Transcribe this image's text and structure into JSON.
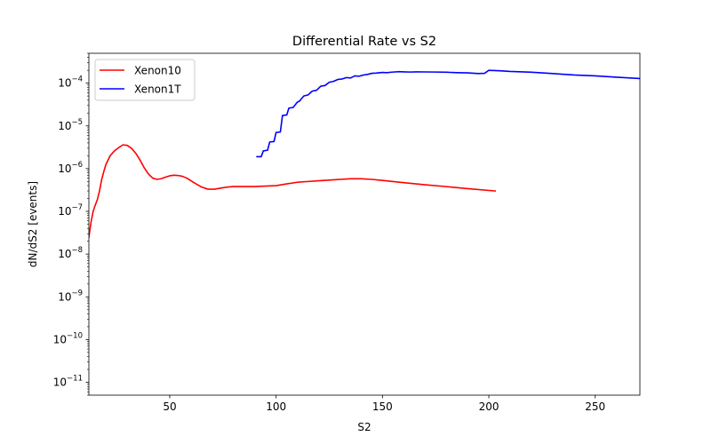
{
  "chart_data": {
    "type": "line",
    "title": "Differential Rate vs S2",
    "xlabel": "S2",
    "ylabel": "dN/dS2 [events]",
    "xlim": [
      12,
      271
    ],
    "ylim": [
      5e-12,
      0.0005
    ],
    "yscale": "log",
    "x_ticks": [
      50,
      100,
      150,
      200,
      250
    ],
    "y_ticks": [
      {
        "value": 1e-11,
        "base": "10",
        "exp": "−11"
      },
      {
        "value": 1e-10,
        "base": "10",
        "exp": "−10"
      },
      {
        "value": 1e-09,
        "base": "10",
        "exp": "−9"
      },
      {
        "value": 1e-08,
        "base": "10",
        "exp": "−8"
      },
      {
        "value": 1e-07,
        "base": "10",
        "exp": "−7"
      },
      {
        "value": 1e-06,
        "base": "10",
        "exp": "−6"
      },
      {
        "value": 1e-05,
        "base": "10",
        "exp": "−5"
      },
      {
        "value": 0.0001,
        "base": "10",
        "exp": "−4"
      }
    ],
    "grid": false,
    "legend_position": "upper-left",
    "series": [
      {
        "name": "Xenon10",
        "color": "#ff0000",
        "x": [
          12,
          13,
          14,
          15,
          16,
          17,
          18,
          19,
          20,
          22,
          24,
          26,
          28,
          30,
          32,
          34,
          36,
          38,
          40,
          42,
          44,
          46,
          48,
          50,
          52,
          54,
          56,
          58,
          60,
          62,
          65,
          68,
          71,
          74,
          77,
          80,
          85,
          90,
          95,
          100,
          105,
          110,
          115,
          120,
          125,
          130,
          135,
          140,
          145,
          150,
          160,
          170,
          180,
          190,
          203
        ],
        "y": [
          2.5e-08,
          5.5e-08,
          1e-07,
          1.4e-07,
          1.9e-07,
          3e-07,
          5.5e-07,
          8.5e-07,
          1.25e-06,
          2e-06,
          2.6e-06,
          3.1e-06,
          3.6e-06,
          3.5e-06,
          3e-06,
          2.3e-06,
          1.6e-06,
          1.05e-06,
          7.5e-07,
          6e-07,
          5.6e-07,
          5.8e-07,
          6.3e-07,
          6.8e-07,
          7e-07,
          6.9e-07,
          6.6e-07,
          6e-07,
          5.2e-07,
          4.5e-07,
          3.7e-07,
          3.3e-07,
          3.3e-07,
          3.5e-07,
          3.7e-07,
          3.8e-07,
          3.8e-07,
          3.8e-07,
          3.9e-07,
          4e-07,
          4.4e-07,
          4.8e-07,
          5e-07,
          5.2e-07,
          5.4e-07,
          5.6e-07,
          5.8e-07,
          5.8e-07,
          5.6e-07,
          5.3e-07,
          4.7e-07,
          4.2e-07,
          3.8e-07,
          3.4e-07,
          3e-07
        ]
      },
      {
        "name": "Xenon1T",
        "color": "#0000ff",
        "x": [
          91,
          93,
          94,
          96,
          97,
          99,
          100,
          102,
          103,
          105,
          106,
          108,
          110,
          111,
          113,
          115,
          117,
          119,
          121,
          123,
          125,
          127,
          129,
          131,
          133,
          135,
          137,
          139,
          141,
          143,
          145,
          147,
          150,
          152,
          155,
          158,
          160,
          163,
          166,
          170,
          175,
          180,
          185,
          190,
          195,
          198,
          200,
          205,
          210,
          220,
          230,
          240,
          250,
          260,
          271
        ],
        "y": [
          1.9e-06,
          1.9e-06,
          2.6e-06,
          2.7e-06,
          4.2e-06,
          4.3e-06,
          7e-06,
          7.2e-06,
          1.75e-05,
          1.8e-05,
          2.6e-05,
          2.7e-05,
          3.6e-05,
          3.8e-05,
          5e-05,
          5.3e-05,
          6.5e-05,
          6.8e-05,
          8.5e-05,
          8.8e-05,
          0.000105,
          0.00011,
          0.000122,
          0.000125,
          0.000135,
          0.000132,
          0.000148,
          0.000145,
          0.000155,
          0.00016,
          0.00017,
          0.000172,
          0.000178,
          0.000176,
          0.000182,
          0.000186,
          0.000184,
          0.000182,
          0.000184,
          0.000183,
          0.000182,
          0.00018,
          0.000176,
          0.000174,
          0.000168,
          0.00017,
          0.0002,
          0.000195,
          0.000188,
          0.00018,
          0.000168,
          0.000155,
          0.000148,
          0.000138,
          0.000128
        ]
      }
    ]
  }
}
